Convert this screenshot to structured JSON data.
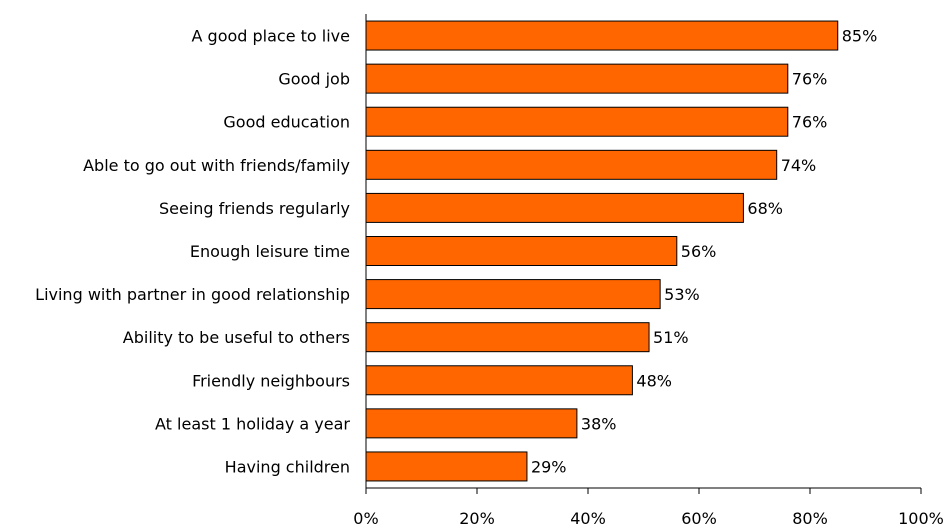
{
  "chart_data": {
    "type": "bar",
    "orientation": "horizontal",
    "categories": [
      "A good place to live",
      "Good job",
      "Good education",
      "Able to go out with friends/family",
      "Seeing friends regularly",
      "Enough leisure time",
      "Living with partner in good relationship",
      "Ability to be useful to others",
      "Friendly neighbours",
      "At least 1 holiday a year",
      "Having children"
    ],
    "values": [
      85,
      76,
      76,
      74,
      68,
      56,
      53,
      51,
      48,
      38,
      29
    ],
    "value_labels": [
      "85%",
      "76%",
      "76%",
      "74%",
      "68%",
      "56%",
      "53%",
      "51%",
      "48%",
      "38%",
      "29%"
    ],
    "xlim": [
      0,
      100
    ],
    "x_ticks": [
      0,
      20,
      40,
      60,
      80,
      100
    ],
    "x_tick_labels": [
      "0%",
      "20%",
      "40%",
      "60%",
      "80%",
      "100%"
    ],
    "bar_color": "#ff6600",
    "grid": false
  }
}
